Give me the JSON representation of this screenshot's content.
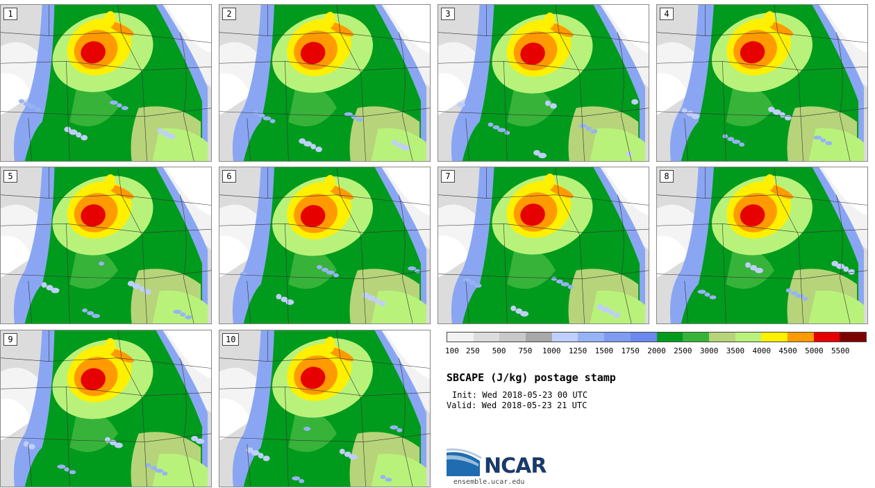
{
  "title": "SBCAPE (J/kg) postage stamp",
  "init": "Init: Wed 2018-05-23 00 UTC",
  "valid": "Valid: Wed 2018-05-23 21 UTC",
  "panels": [
    "1",
    "2",
    "3",
    "4",
    "5",
    "6",
    "7",
    "8",
    "9",
    "10"
  ],
  "colorbar": {
    "colors": [
      "#f2f2f2",
      "#dcdcdc",
      "#c8c8c8",
      "#a8a8a8",
      "#bfcffb",
      "#96b4f5",
      "#7e9cf2",
      "#6b88ee",
      "#009b1c",
      "#37b33a",
      "#b7d47a",
      "#b9f27a",
      "#fff000",
      "#ff9b00",
      "#e60000",
      "#7d0000"
    ],
    "labels": [
      "100",
      "250",
      "500",
      "750",
      "1000",
      "1250",
      "1500",
      "1750",
      "2000",
      "2500",
      "3000",
      "3500",
      "4000",
      "4500",
      "5000",
      "5500"
    ]
  },
  "logo": {
    "name": "NCAR",
    "url": "ensemble.ucar.edu"
  }
}
